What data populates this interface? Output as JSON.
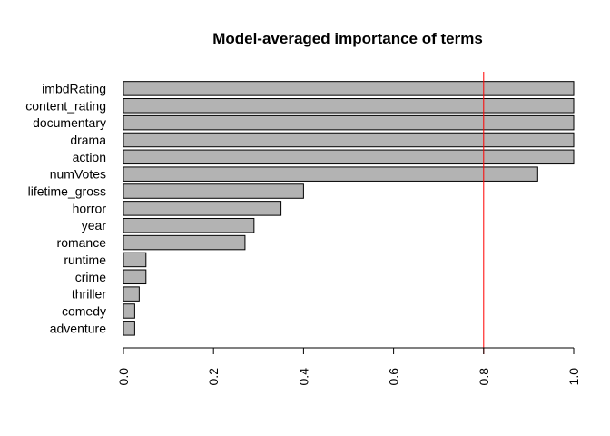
{
  "chart_data": {
    "type": "bar",
    "orientation": "horizontal",
    "title": "Model-averaged importance of terms",
    "xlabel": "",
    "ylabel": "",
    "categories": [
      "imbdRating",
      "content_rating",
      "documentary",
      "drama",
      "action",
      "numVotes",
      "lifetime_gross",
      "horror",
      "year",
      "romance",
      "runtime",
      "crime",
      "thriller",
      "comedy",
      "adventure"
    ],
    "values": [
      1.0,
      1.0,
      1.0,
      1.0,
      1.0,
      0.92,
      0.4,
      0.35,
      0.29,
      0.27,
      0.05,
      0.05,
      0.035,
      0.025,
      0.025
    ],
    "xlim": [
      0,
      1
    ],
    "x_ticks": [
      "0.0",
      "0.2",
      "0.4",
      "0.6",
      "0.8",
      "1.0"
    ],
    "reference_line": {
      "value": 0.8,
      "color": "#ff0000"
    },
    "bar_fill": "#b3b3b3",
    "bar_stroke": "#000000",
    "grid": false,
    "legend": "none"
  }
}
